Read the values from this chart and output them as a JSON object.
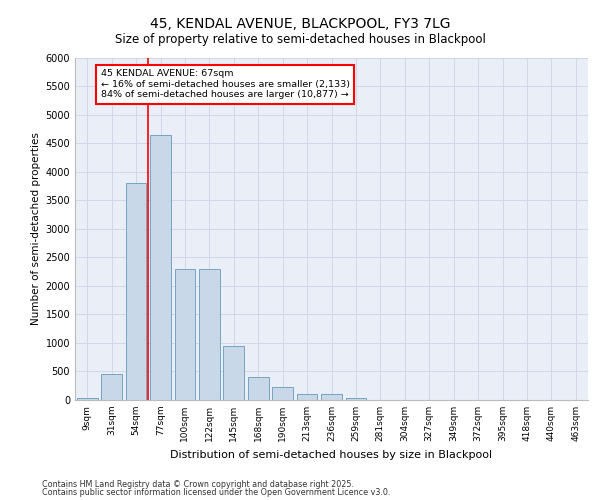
{
  "title_line1": "45, KENDAL AVENUE, BLACKPOOL, FY3 7LG",
  "title_line2": "Size of property relative to semi-detached houses in Blackpool",
  "xlabel": "Distribution of semi-detached houses by size in Blackpool",
  "ylabel": "Number of semi-detached properties",
  "categories": [
    "9sqm",
    "31sqm",
    "54sqm",
    "77sqm",
    "100sqm",
    "122sqm",
    "145sqm",
    "168sqm",
    "190sqm",
    "213sqm",
    "236sqm",
    "259sqm",
    "281sqm",
    "304sqm",
    "327sqm",
    "349sqm",
    "372sqm",
    "395sqm",
    "418sqm",
    "440sqm",
    "463sqm"
  ],
  "values": [
    30,
    450,
    3800,
    4650,
    2300,
    2300,
    950,
    400,
    220,
    100,
    100,
    30,
    0,
    0,
    0,
    0,
    0,
    0,
    0,
    0,
    0
  ],
  "bar_color": "#c8d8e8",
  "bar_edge_color": "#6699bb",
  "grid_color": "#d0d8e8",
  "annotation_line1": "45 KENDAL AVENUE: 67sqm",
  "annotation_line2": "← 16% of semi-detached houses are smaller (2,133)",
  "annotation_line3": "84% of semi-detached houses are larger (10,877) →",
  "footer_line1": "Contains HM Land Registry data © Crown copyright and database right 2025.",
  "footer_line2": "Contains public sector information licensed under the Open Government Licence v3.0.",
  "ylim": [
    0,
    6000
  ],
  "yticks": [
    0,
    500,
    1000,
    1500,
    2000,
    2500,
    3000,
    3500,
    4000,
    4500,
    5000,
    5500,
    6000
  ],
  "bg_color": "#eaeff7",
  "red_line_x": 2.5
}
